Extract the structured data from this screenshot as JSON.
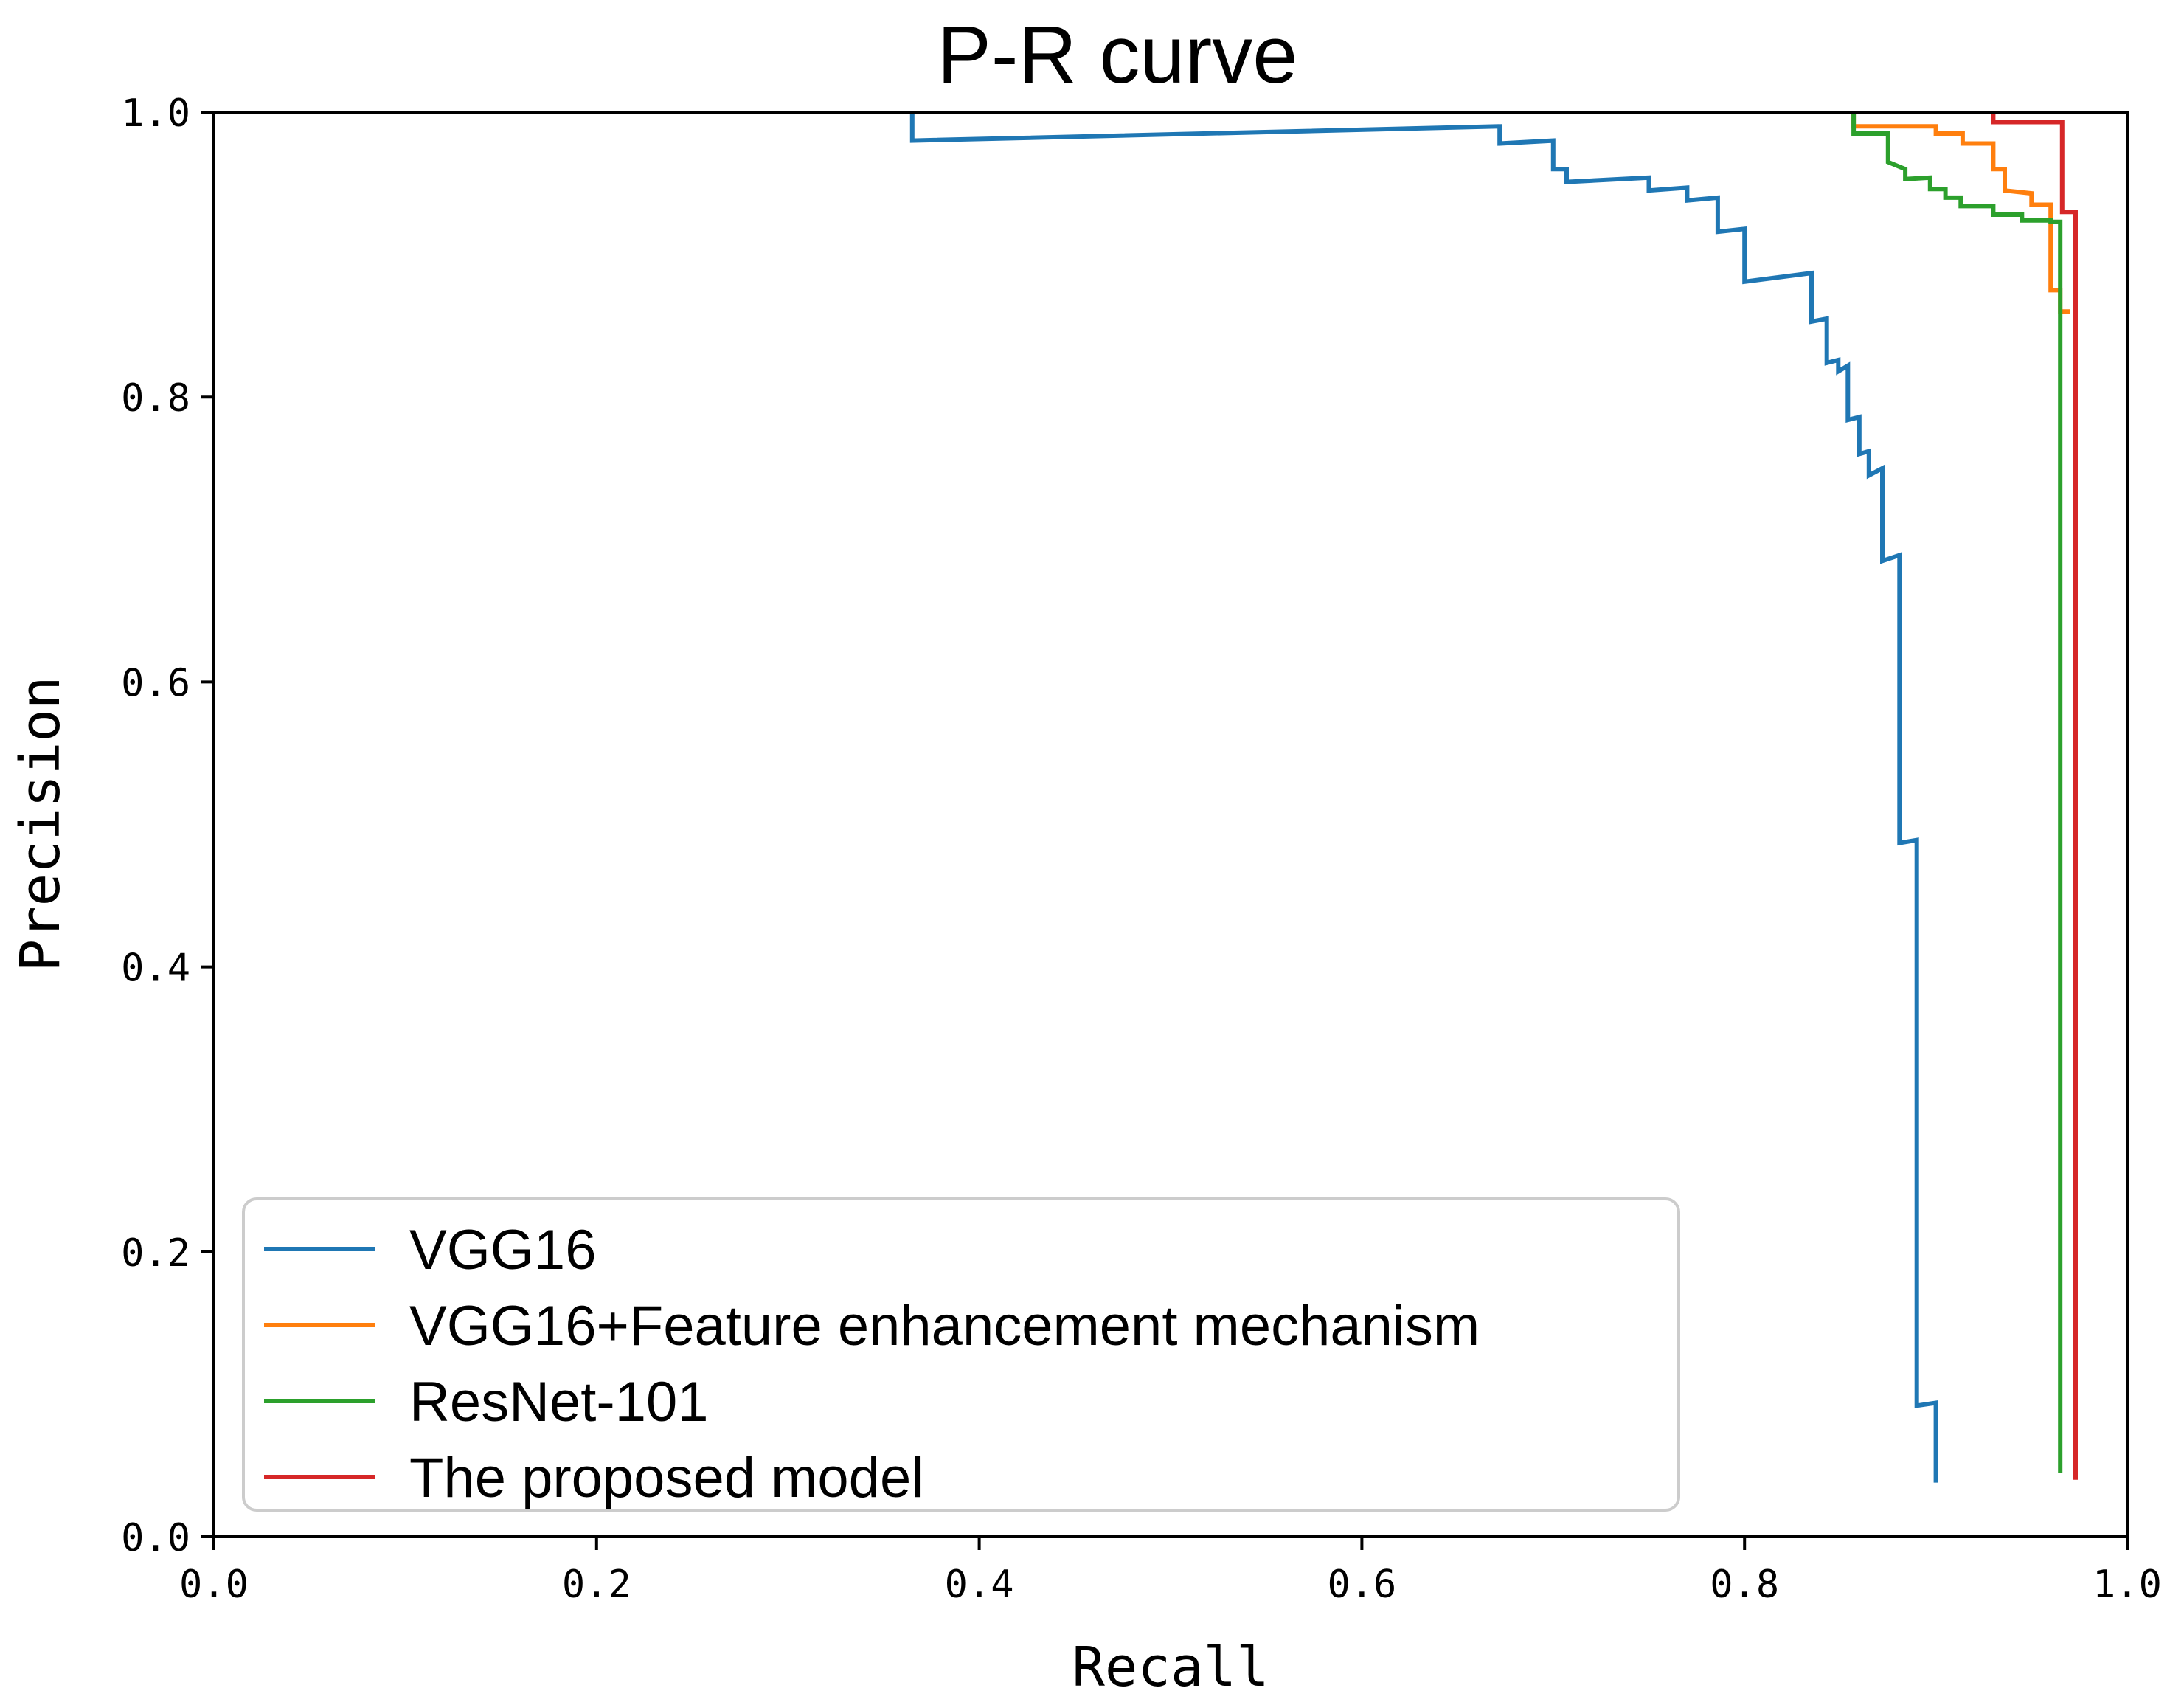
{
  "chart_data": {
    "type": "line",
    "title": "P-R curve",
    "xlabel": "Recall",
    "ylabel": "Precision",
    "xlim": [
      0,
      1
    ],
    "ylim": [
      0,
      1
    ],
    "xticks": [
      "0.0",
      "0.2",
      "0.4",
      "0.6",
      "0.8",
      "1.0"
    ],
    "yticks": [
      "0.0",
      "0.2",
      "0.4",
      "0.6",
      "0.8",
      "1.0"
    ],
    "grid": false,
    "legend_position": "lower-left",
    "series": [
      {
        "name": "VGG16",
        "color": "#1f77b4",
        "points": [
          [
            0.365,
            1.0
          ],
          [
            0.365,
            0.98
          ],
          [
            0.672,
            0.99
          ],
          [
            0.672,
            0.978
          ],
          [
            0.7,
            0.98
          ],
          [
            0.7,
            0.96
          ],
          [
            0.707,
            0.96
          ],
          [
            0.707,
            0.951
          ],
          [
            0.75,
            0.954
          ],
          [
            0.75,
            0.945
          ],
          [
            0.77,
            0.947
          ],
          [
            0.77,
            0.938
          ],
          [
            0.786,
            0.94
          ],
          [
            0.786,
            0.916
          ],
          [
            0.8,
            0.918
          ],
          [
            0.8,
            0.881
          ],
          [
            0.835,
            0.887
          ],
          [
            0.835,
            0.853
          ],
          [
            0.843,
            0.855
          ],
          [
            0.843,
            0.824
          ],
          [
            0.849,
            0.826
          ],
          [
            0.849,
            0.818
          ],
          [
            0.854,
            0.822
          ],
          [
            0.854,
            0.784
          ],
          [
            0.86,
            0.786
          ],
          [
            0.86,
            0.76
          ],
          [
            0.865,
            0.762
          ],
          [
            0.865,
            0.745
          ],
          [
            0.872,
            0.75
          ],
          [
            0.872,
            0.685
          ],
          [
            0.881,
            0.689
          ],
          [
            0.881,
            0.487
          ],
          [
            0.89,
            0.489
          ],
          [
            0.89,
            0.092
          ],
          [
            0.9,
            0.094
          ],
          [
            0.9,
            0.038
          ]
        ]
      },
      {
        "name": "VGG16+Feature enhancement mechanism",
        "color": "#ff7f0e",
        "points": [
          [
            0.857,
            1.0
          ],
          [
            0.857,
            0.99
          ],
          [
            0.9,
            0.99
          ],
          [
            0.9,
            0.985
          ],
          [
            0.914,
            0.985
          ],
          [
            0.914,
            0.978
          ],
          [
            0.93,
            0.978
          ],
          [
            0.93,
            0.96
          ],
          [
            0.936,
            0.96
          ],
          [
            0.936,
            0.945
          ],
          [
            0.95,
            0.943
          ],
          [
            0.95,
            0.935
          ],
          [
            0.96,
            0.935
          ],
          [
            0.96,
            0.875
          ],
          [
            0.965,
            0.875
          ],
          [
            0.965,
            0.86
          ],
          [
            0.97,
            0.86
          ]
        ]
      },
      {
        "name": "ResNet-101",
        "color": "#2ca02c",
        "points": [
          [
            0.857,
            1.0
          ],
          [
            0.857,
            0.985
          ],
          [
            0.875,
            0.985
          ],
          [
            0.875,
            0.965
          ],
          [
            0.884,
            0.96
          ],
          [
            0.884,
            0.953
          ],
          [
            0.897,
            0.954
          ],
          [
            0.897,
            0.946
          ],
          [
            0.905,
            0.946
          ],
          [
            0.905,
            0.94
          ],
          [
            0.913,
            0.94
          ],
          [
            0.913,
            0.934
          ],
          [
            0.93,
            0.934
          ],
          [
            0.93,
            0.928
          ],
          [
            0.945,
            0.928
          ],
          [
            0.945,
            0.924
          ],
          [
            0.96,
            0.924
          ],
          [
            0.96,
            0.923
          ],
          [
            0.965,
            0.923
          ],
          [
            0.965,
            0.045
          ]
        ]
      },
      {
        "name": "The proposed model",
        "color": "#d62728",
        "points": [
          [
            0.93,
            1.0
          ],
          [
            0.93,
            0.993
          ],
          [
            0.966,
            0.993
          ],
          [
            0.966,
            0.93
          ],
          [
            0.973,
            0.93
          ],
          [
            0.973,
            0.04
          ]
        ]
      }
    ]
  }
}
